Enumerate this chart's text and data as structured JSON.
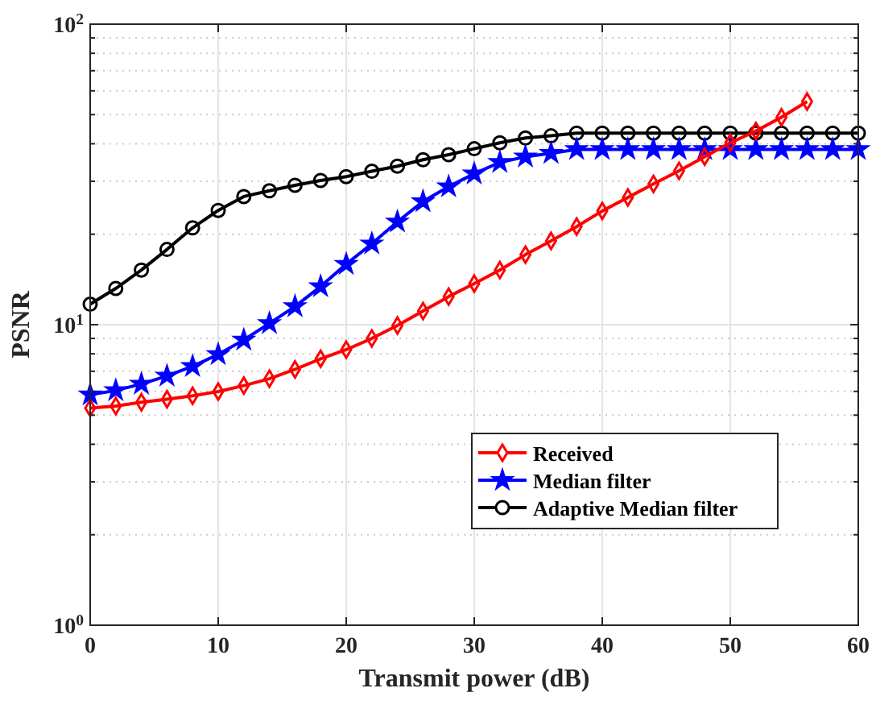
{
  "chart_data": {
    "type": "line",
    "xlabel": "Transmit power (dB)",
    "ylabel": "PSNR",
    "log": true,
    "grid": true,
    "legend": "bottom right",
    "xlim": [
      0,
      60
    ],
    "xticks": [
      0,
      10,
      20,
      30,
      40,
      50,
      60
    ],
    "ylim": [
      1,
      100
    ],
    "yticks": [
      {
        "value": 1,
        "label": "10$^{0}$"
      },
      {
        "value": 2,
        "label": null
      },
      {
        "value": 3,
        "label": null
      },
      {
        "value": 4,
        "label": null
      },
      {
        "value": 5,
        "label": null
      },
      {
        "value": 6,
        "label": null
      },
      {
        "value": 7,
        "label": null
      },
      {
        "value": 8,
        "label": null
      },
      {
        "value": 9,
        "label": null
      },
      {
        "value": 10,
        "label": "10$^{1}$"
      },
      {
        "value": 20,
        "label": null
      },
      {
        "value": 30,
        "label": null
      },
      {
        "value": 40,
        "label": null
      },
      {
        "value": 50,
        "label": null
      },
      {
        "value": 60,
        "label": null
      },
      {
        "value": 70,
        "label": null
      },
      {
        "value": 80,
        "label": null
      },
      {
        "value": 90,
        "label": null
      },
      {
        "value": 100,
        "label": "10$^{2}$"
      }
    ],
    "series": [
      {
        "name": "Received",
        "color": "#ff0000",
        "marker": "diamond",
        "x": [
          0,
          2,
          4,
          6,
          8,
          10,
          12,
          14,
          16,
          18,
          20,
          22,
          24,
          26,
          28,
          30,
          32,
          34,
          36,
          38,
          40,
          42,
          44,
          46,
          48,
          50,
          52,
          54,
          56
        ],
        "values": [
          5.28,
          5.36,
          5.52,
          5.65,
          5.8,
          5.99,
          6.27,
          6.61,
          7.1,
          7.7,
          8.26,
          9.0,
          9.94,
          11.1,
          12.4,
          13.7,
          15.2,
          17.1,
          19.0,
          21.2,
          23.9,
          26.5,
          29.4,
          32.5,
          36.2,
          40.3,
          44.1,
          49.0,
          55.3
        ]
      },
      {
        "name": "Median filter",
        "color": "#0000ff",
        "marker": "star",
        "x": [
          0,
          2,
          4,
          6,
          8,
          10,
          12,
          14,
          16,
          18,
          20,
          22,
          24,
          26,
          28,
          30,
          32,
          34,
          36,
          38,
          40,
          42,
          44,
          46,
          48,
          50,
          52,
          54,
          56,
          58,
          60
        ],
        "values": [
          5.85,
          6.04,
          6.35,
          6.75,
          7.27,
          7.96,
          8.9,
          10.1,
          11.5,
          13.4,
          15.9,
          18.6,
          22.0,
          25.7,
          28.8,
          31.8,
          34.7,
          36.2,
          37.2,
          38.3,
          38.3,
          38.3,
          38.3,
          38.3,
          38.3,
          38.3,
          38.3,
          38.3,
          38.3,
          38.3,
          38.3
        ]
      },
      {
        "name": "Adaptive Median filter",
        "color": "#000000",
        "marker": "circle",
        "x": [
          0,
          2,
          4,
          6,
          8,
          10,
          12,
          14,
          16,
          18,
          20,
          22,
          24,
          26,
          28,
          30,
          32,
          34,
          36,
          38,
          40,
          42,
          44,
          46,
          48,
          50,
          52,
          54,
          56,
          58,
          60
        ],
        "values": [
          11.7,
          13.2,
          15.2,
          17.8,
          21,
          24,
          26.7,
          27.9,
          29.1,
          30.2,
          31.1,
          32.4,
          33.7,
          35.4,
          36.8,
          38.5,
          40.3,
          41.8,
          42.5,
          43.4,
          43.4,
          43.4,
          43.4,
          43.4,
          43.4,
          43.4,
          43.4,
          43.4,
          43.4,
          43.4,
          43.4
        ]
      }
    ]
  }
}
